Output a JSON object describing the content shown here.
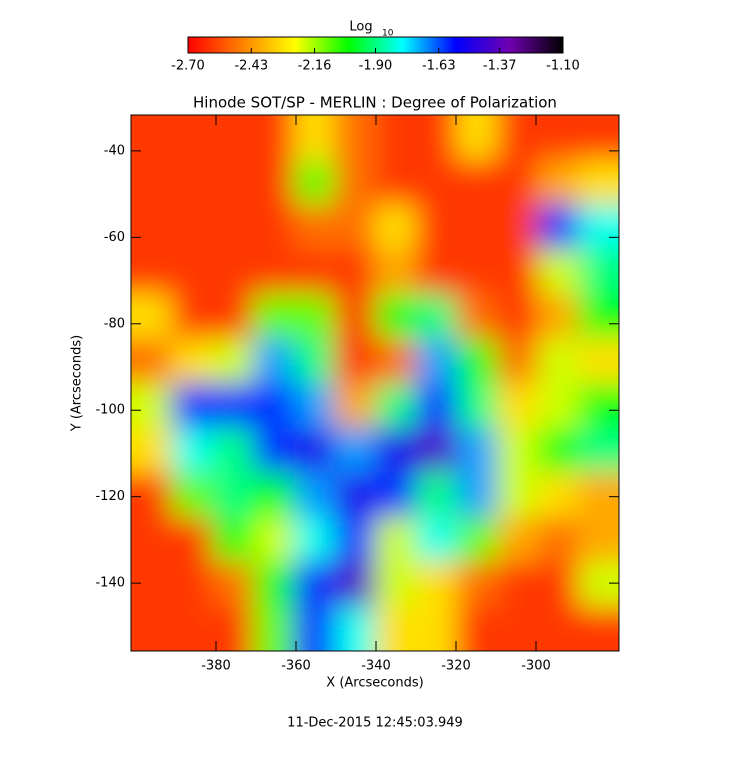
{
  "chart_data": {
    "type": "heatmap",
    "title": "Hinode SOT/SP - MERLIN : Degree of Polarization",
    "xlabel": "X (Arcseconds)",
    "ylabel": "Y (Arcseconds)",
    "footer": "11-Dec-2015 12:45:03.949",
    "colorbar_label": "Log",
    "colorbar_label_sub": "10",
    "colormap": [
      "#ff0000",
      "#ff8000",
      "#ffff00",
      "#00ff00",
      "#00ffff",
      "#0000ff",
      "#7000b0",
      "#000000"
    ],
    "clim": [
      -2.7,
      -1.1
    ],
    "cticks": [
      {
        "value": -2.7,
        "label": "-2.70"
      },
      {
        "value": -2.43,
        "label": "-2.43"
      },
      {
        "value": -2.16,
        "label": "-2.16"
      },
      {
        "value": -1.9,
        "label": "-1.90"
      },
      {
        "value": -1.63,
        "label": "-1.63"
      },
      {
        "value": -1.37,
        "label": "-1.37"
      },
      {
        "value": -1.1,
        "label": "-1.10"
      }
    ],
    "xlim": [
      -401.25,
      -279.25
    ],
    "ylim": [
      -155.7,
      -31.7
    ],
    "xticks": [
      -380,
      -360,
      -340,
      -320,
      -300
    ],
    "yticks": [
      -140,
      -120,
      -100,
      -80,
      -60,
      -40
    ],
    "z": [
      [
        -2.6,
        -2.6,
        -2.6,
        -2.6,
        -2.3,
        -2.5,
        -2.6,
        -2.6,
        -2.3,
        -2.6,
        -2.6,
        -2.6
      ],
      [
        -2.6,
        -2.6,
        -2.6,
        -2.6,
        -2.1,
        -2.5,
        -2.6,
        -2.6,
        -2.6,
        -2.6,
        -2.4,
        -2.3
      ],
      [
        -2.6,
        -2.6,
        -2.6,
        -2.6,
        -2.5,
        -2.5,
        -2.3,
        -2.6,
        -2.6,
        -2.6,
        -1.6,
        -1.8
      ],
      [
        -2.6,
        -2.6,
        -2.6,
        -2.6,
        -2.6,
        -2.6,
        -2.4,
        -2.6,
        -2.6,
        -2.6,
        -2.2,
        -1.9
      ],
      [
        -2.3,
        -2.6,
        -2.6,
        -2.1,
        -2.1,
        -2.6,
        -2.0,
        -1.9,
        -2.5,
        -2.6,
        -2.4,
        -2.0
      ],
      [
        -2.5,
        -2.3,
        -2.2,
        -1.7,
        -1.9,
        -2.6,
        -2.5,
        -1.7,
        -2.0,
        -2.5,
        -2.2,
        -2.3
      ],
      [
        -2.2,
        -1.6,
        -1.6,
        -1.6,
        -1.7,
        -2.4,
        -1.9,
        -1.6,
        -1.9,
        -2.3,
        -2.2,
        -2.0
      ],
      [
        -2.3,
        -1.8,
        -1.9,
        -1.6,
        -1.5,
        -1.7,
        -1.5,
        -1.4,
        -1.7,
        -2.2,
        -2.0,
        -1.9
      ],
      [
        -2.6,
        -2.1,
        -1.9,
        -2.0,
        -1.7,
        -1.5,
        -1.6,
        -1.9,
        -1.7,
        -2.2,
        -2.3,
        -2.4
      ],
      [
        -2.6,
        -2.6,
        -2.0,
        -2.2,
        -1.8,
        -1.6,
        -2.2,
        -1.8,
        -2.1,
        -2.4,
        -2.5,
        -2.4
      ],
      [
        -2.6,
        -2.6,
        -2.5,
        -2.0,
        -1.6,
        -1.4,
        -2.2,
        -2.3,
        -2.5,
        -2.6,
        -2.6,
        -2.2
      ],
      [
        -2.6,
        -2.6,
        -2.6,
        -2.1,
        -1.6,
        -1.8,
        -2.3,
        -2.3,
        -2.6,
        -2.6,
        -2.6,
        -2.6
      ]
    ]
  }
}
